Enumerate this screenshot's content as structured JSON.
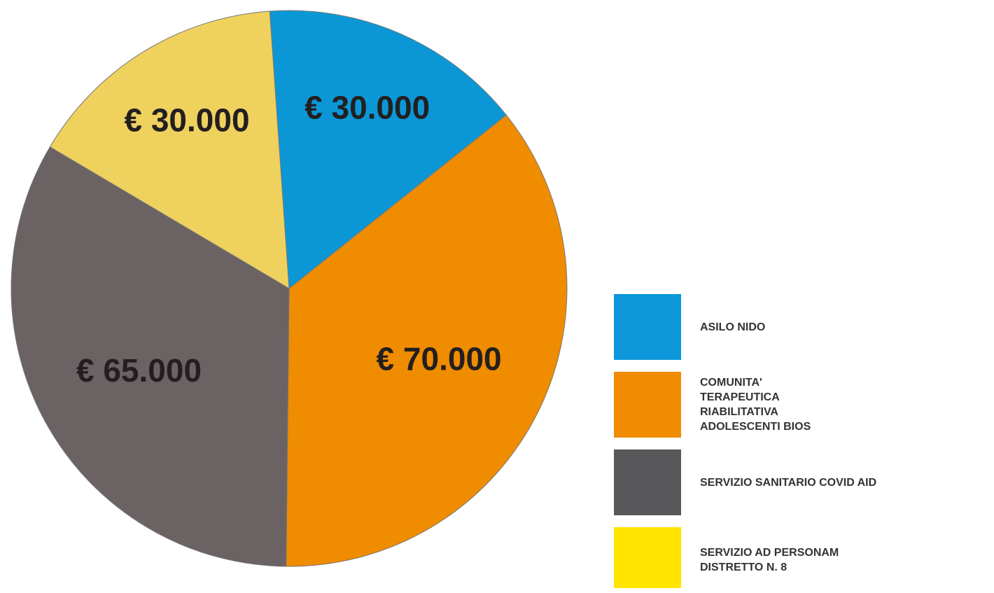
{
  "chart_data": {
    "type": "pie",
    "categories": [
      "ASILO NIDO",
      "COMUNITA' TERAPEUTICA RIABILITATIVA ADOLESCENTI BIOS",
      "SERVIZIO SANITARIO COVID AID",
      "SERVIZIO AD PERSONAM DISTRETTO N. 8"
    ],
    "values": [
      30000,
      70000,
      65000,
      30000
    ],
    "value_labels": [
      "€ 30.000",
      "€ 70.000",
      "€ 65.000",
      "€ 30.000"
    ],
    "colors": [
      "#0b97d6",
      "#ef8c00",
      "#6b6263",
      "#efd15e"
    ],
    "legend_colors": [
      "#0b97d9",
      "#f08c00",
      "#58585a",
      "#ffe500"
    ],
    "legend": "right"
  }
}
